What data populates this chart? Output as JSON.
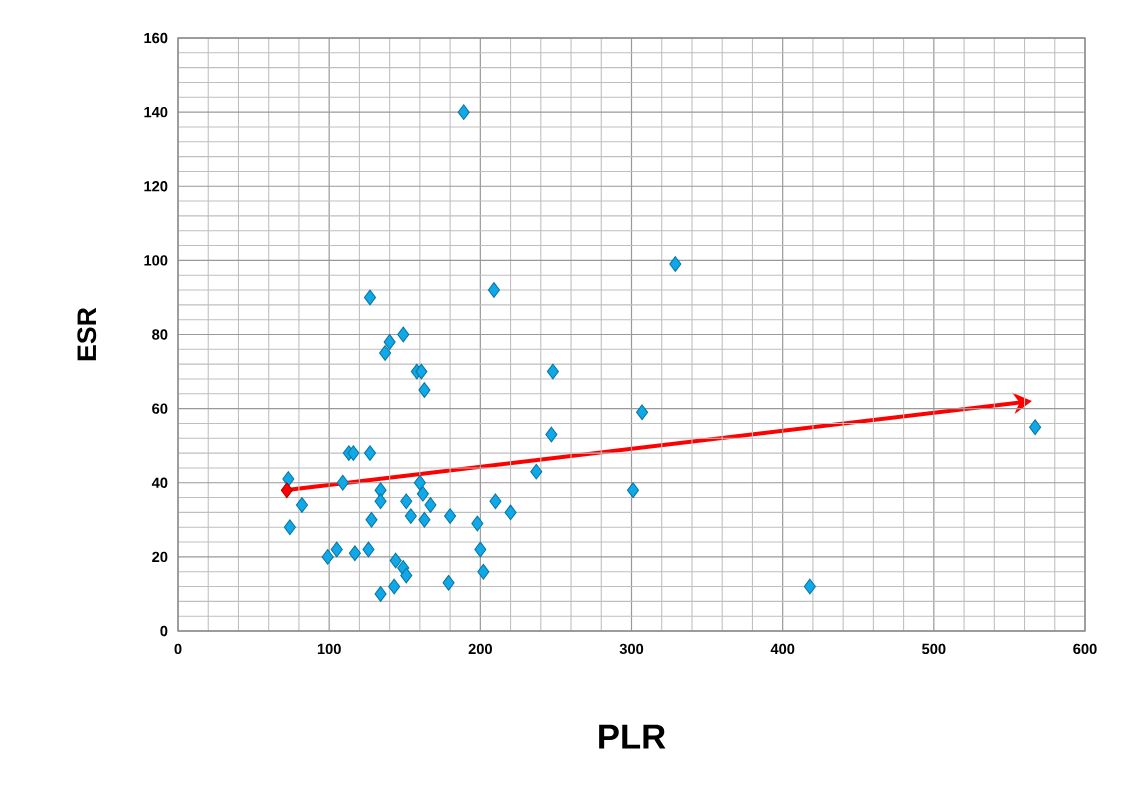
{
  "chart_data": {
    "type": "scatter",
    "xlabel": "PLR",
    "ylabel": "ESR",
    "xlim": [
      0,
      600
    ],
    "xticks": [
      0,
      100,
      200,
      300,
      400,
      500,
      600
    ],
    "ylim": [
      0,
      160
    ],
    "yticks": [
      0,
      20,
      40,
      60,
      80,
      100,
      120,
      140,
      160
    ],
    "grid": true,
    "marker": "diamond",
    "series": [
      {
        "color": "#0fa8e8",
        "x": [
          73,
          74,
          82,
          99,
          105,
          109,
          113,
          116,
          117,
          127,
          127,
          126,
          128,
          134,
          134,
          134,
          137,
          140,
          143,
          144,
          149,
          149,
          151,
          151,
          154,
          158,
          161,
          163,
          160,
          162,
          163,
          167,
          179,
          180,
          189,
          198,
          200,
          202,
          209,
          210,
          220,
          237,
          248,
          247,
          301,
          307,
          329,
          418,
          567
        ],
        "values": [
          41,
          28,
          34,
          20,
          22,
          40,
          48,
          48,
          21,
          90,
          48,
          22,
          30,
          10,
          38,
          35,
          75,
          78,
          12,
          19,
          80,
          17,
          35,
          15,
          31,
          70,
          70,
          65,
          40,
          37,
          30,
          34,
          13,
          31,
          140,
          29,
          22,
          16,
          92,
          35,
          32,
          43,
          70,
          53,
          38,
          59,
          99,
          12,
          55
        ]
      },
      {
        "color": "#ff0000",
        "x": [
          72
        ],
        "values": [
          38
        ]
      }
    ]
  }
}
